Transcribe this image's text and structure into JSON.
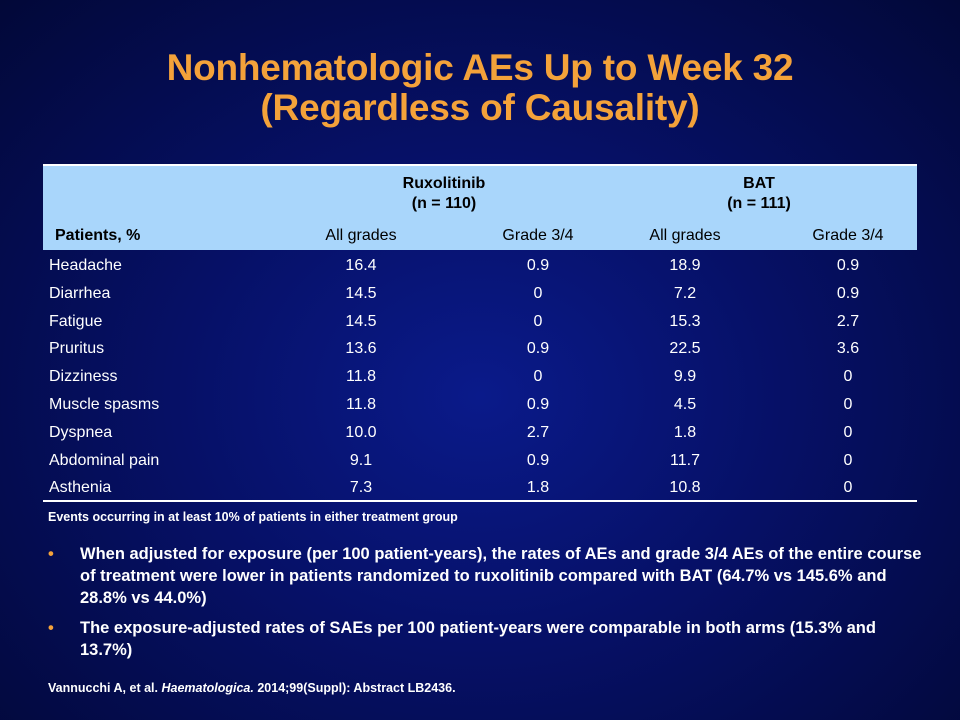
{
  "title": {
    "line1": "Nonhematologic AEs Up to Week 32",
    "line2": "(Regardless of Causality)"
  },
  "table": {
    "groups": [
      {
        "name": "Ruxolitinib",
        "n": "(n = 110)"
      },
      {
        "name": "BAT",
        "n": "(n = 111)"
      }
    ],
    "headers": [
      "Patients, %",
      "All grades",
      "Grade 3/4",
      "All grades",
      "Grade 3/4"
    ],
    "rows": [
      [
        "Headache",
        "16.4",
        "0.9",
        "18.9",
        "0.9"
      ],
      [
        "Diarrhea",
        "14.5",
        "0",
        "7.2",
        "0.9"
      ],
      [
        "Fatigue",
        "14.5",
        "0",
        "15.3",
        "2.7"
      ],
      [
        "Pruritus",
        "13.6",
        "0.9",
        "22.5",
        "3.6"
      ],
      [
        "Dizziness",
        "11.8",
        "0",
        "9.9",
        "0"
      ],
      [
        "Muscle spasms",
        "11.8",
        "0.9",
        "4.5",
        "0"
      ],
      [
        "Dyspnea",
        "10.0",
        "2.7",
        "1.8",
        "0"
      ],
      [
        "Abdominal pain",
        "9.1",
        "0.9",
        "11.7",
        "0"
      ],
      [
        "Asthenia",
        "7.3",
        "1.8",
        "10.8",
        "0"
      ]
    ]
  },
  "footnote": "Events occurring in at least 10% of patients in either treatment group",
  "bullets": [
    "When adjusted for exposure (per 100 patient-years), the rates of AEs and grade 3/4 AEs of the entire course of treatment were lower in patients randomized to ruxolitinib  compared with BAT (64.7% vs 145.6% and 28.8% vs 44.0%)",
    "The exposure-adjusted rates of SAEs per 100 patient-years were comparable in both arms (15.3% and 13.7%)"
  ],
  "bullet_marker": "•",
  "reference": {
    "authors": "Vannucchi A, et al. ",
    "journal": "Haematologica.",
    "citation": " 2014;99(Suppl): Abstract LB2436."
  },
  "colors": {
    "title": "#f4a23a",
    "header_bg": "#a9d6fb",
    "background": "#061066"
  }
}
